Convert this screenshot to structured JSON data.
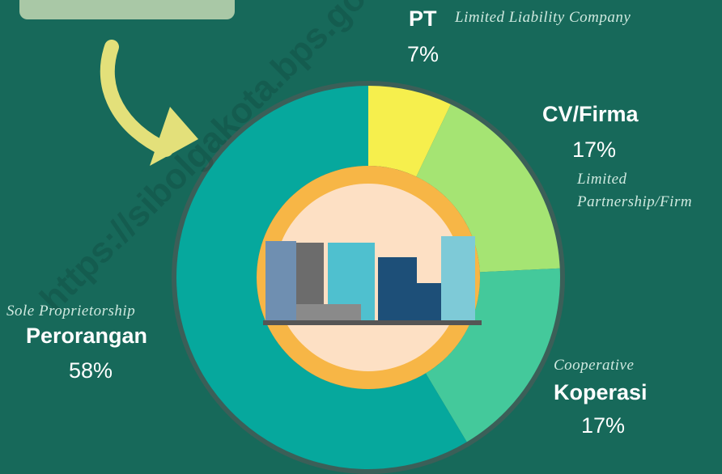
{
  "chart_data": {
    "type": "donut",
    "categories": [
      "PT",
      "CV/Firma",
      "Koperasi",
      "Perorangan"
    ],
    "descriptions": [
      "Limited Liability Company",
      "Limited Partnership/Firm",
      "Cooperative",
      "Sole Proprietorship"
    ],
    "values": [
      7,
      17,
      17,
      58
    ],
    "value_labels": [
      "7%",
      "17%",
      "17%",
      "58%"
    ],
    "colors": [
      "#f6ef4d",
      "#a5e473",
      "#44c99b",
      "#06a89d"
    ]
  },
  "watermark": "https://sibolgakota.bps.go.id"
}
